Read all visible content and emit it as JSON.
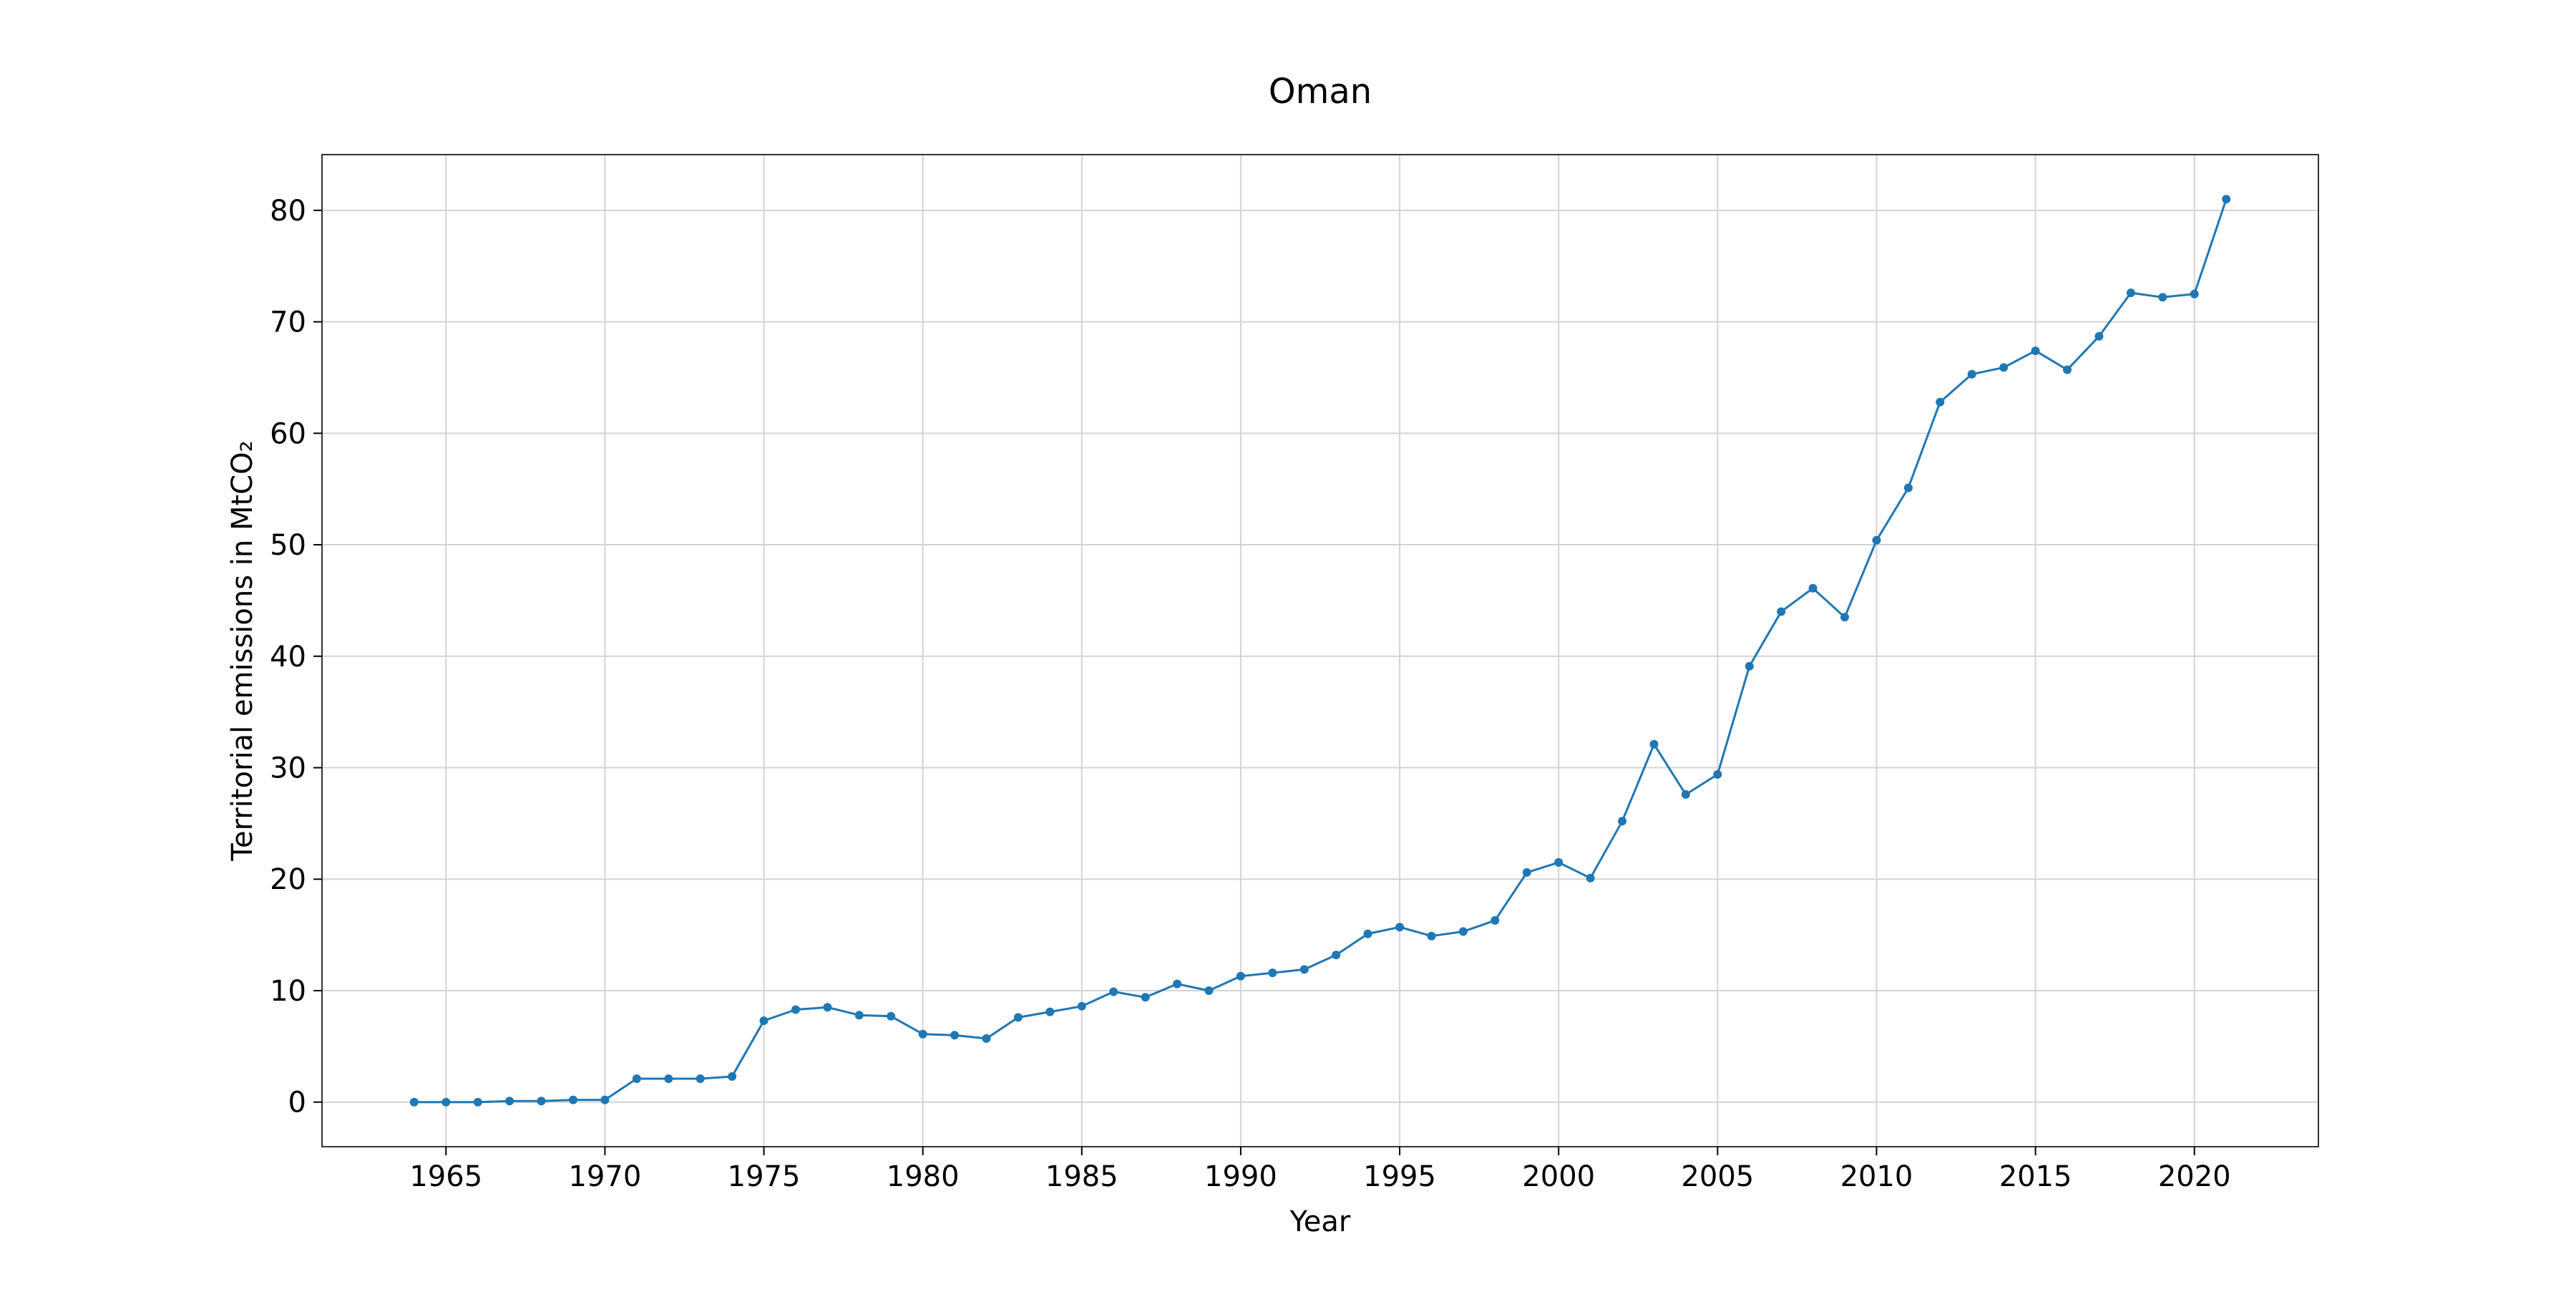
{
  "chart_data": {
    "type": "line",
    "title": "Oman",
    "xlabel": "Year",
    "ylabel": "Territorial emissions in MtCO₂",
    "xlim": [
      1961.1,
      2023.9
    ],
    "ylim": [
      -4.0,
      85.0
    ],
    "xticks": [
      1965,
      1970,
      1975,
      1980,
      1985,
      1990,
      1995,
      2000,
      2005,
      2010,
      2015,
      2020
    ],
    "yticks": [
      0,
      10,
      20,
      30,
      40,
      50,
      60,
      70,
      80
    ],
    "grid": true,
    "line_color": "#1f77b4",
    "marker": "circle",
    "series": [
      {
        "x": [
          1964,
          1965,
          1966,
          1967,
          1968,
          1969,
          1970,
          1971,
          1972,
          1973,
          1974,
          1975,
          1976,
          1977,
          1978,
          1979,
          1980,
          1981,
          1982,
          1983,
          1984,
          1985,
          1986,
          1987,
          1988,
          1989,
          1990,
          1991,
          1992,
          1993,
          1994,
          1995,
          1996,
          1997,
          1998,
          1999,
          2000,
          2001,
          2002,
          2003,
          2004,
          2005,
          2006,
          2007,
          2008,
          2009,
          2010,
          2011,
          2012,
          2013,
          2014,
          2015,
          2016,
          2017,
          2018,
          2019,
          2020,
          2021
        ],
        "values": [
          0.0,
          0.0,
          0.0,
          0.1,
          0.1,
          0.2,
          0.2,
          2.1,
          2.1,
          2.1,
          2.3,
          7.3,
          8.3,
          8.5,
          7.8,
          7.7,
          6.1,
          6.0,
          5.7,
          7.6,
          8.1,
          8.6,
          9.9,
          9.4,
          10.6,
          10.0,
          11.3,
          11.6,
          11.9,
          13.2,
          15.1,
          15.7,
          14.9,
          15.3,
          16.3,
          20.6,
          21.5,
          20.1,
          25.2,
          32.1,
          27.6,
          29.4,
          39.1,
          44.0,
          46.1,
          43.5,
          50.4,
          55.1,
          62.8,
          65.3,
          65.9,
          67.4,
          65.7,
          68.7,
          72.6,
          72.2,
          72.5,
          81.0
        ]
      }
    ]
  }
}
